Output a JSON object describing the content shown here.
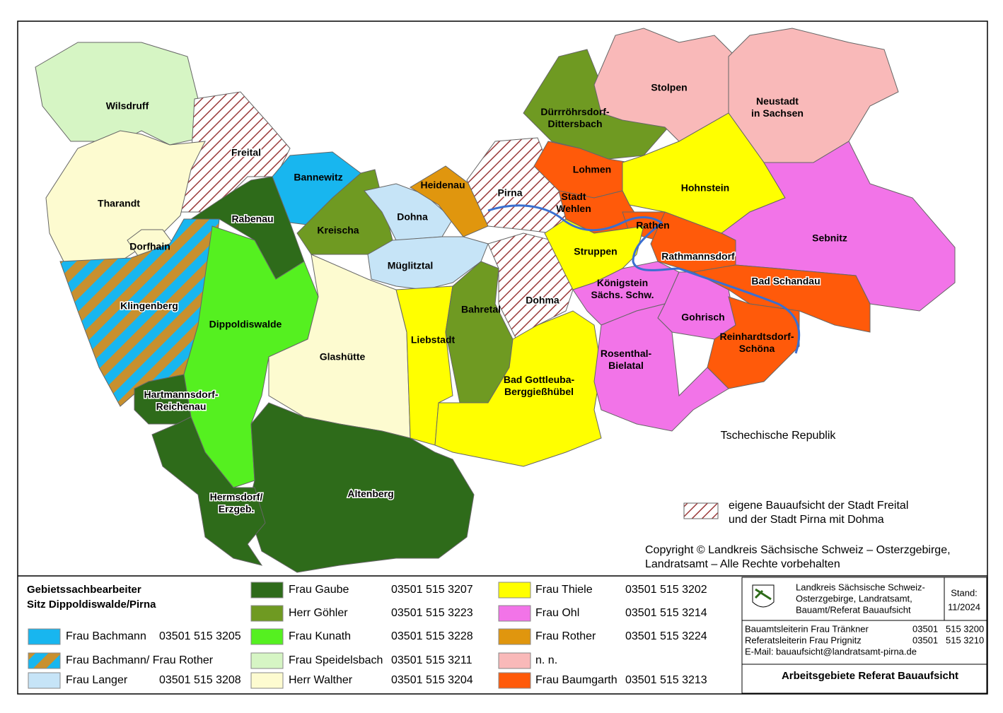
{
  "map": {
    "regions": [
      "Wilsdruff",
      "Freital",
      "Tharandt",
      "Dorfhain",
      "Klingenberg",
      "Bannewitz",
      "Rabenau",
      "Dippoldiswalde",
      "Kreischa",
      "Dohna",
      "Heidenau",
      "Müglitztal",
      "Pirna",
      "Glashütte",
      "Liebstadt",
      "Bahretal",
      "Dohma",
      [
        "Bad Gottleuba-",
        "Berggießhübel"
      ],
      "Altenberg",
      [
        "Hartmannsdorf-",
        "Reichenau"
      ],
      [
        "Hermsdorf/",
        "Erzgeb."
      ],
      [
        "Dürrröhrsdorf-",
        "Dittersbach"
      ],
      "Stolpen",
      [
        "Neustadt",
        "in Sachsen"
      ],
      "Lohmen",
      "Hohnstein",
      [
        "Stadt",
        "Wehlen"
      ],
      "Rathen",
      "Sebnitz",
      "Rathmannsdorf",
      "Struppen",
      [
        "Königstein",
        "Sächs. Schw."
      ],
      "Bad Schandau",
      "Gohrisch",
      [
        "Reinhardtsdorf-",
        "Schöna"
      ],
      [
        "Rosenthal-",
        "Bielatal"
      ]
    ],
    "country": "Tschechische Republik",
    "hatch_note": [
      "eigene Bauaufsicht der Stadt Freital",
      "und der Stadt Pirna mit Dohma"
    ],
    "copyright": [
      "Copyright © Landkreis Sächsische Schweiz – Osterzgebirge,",
      "Landratsamt – Alle Rechte vorbehalten"
    ]
  },
  "legend": {
    "title": [
      "Gebietssachbearbeiter",
      "Sitz Dippoldiswalde/Pirna"
    ],
    "entries": [
      {
        "name": "Frau Bachmann",
        "phone": "03501 515 3205"
      },
      {
        "name": "Frau Bachmann/ Frau Rother"
      },
      {
        "name": "Frau Langer",
        "phone": "03501 515 3208"
      },
      {
        "name": "Frau Gaube",
        "phone": "03501 515 3207"
      },
      {
        "name": "Herr Göhler",
        "phone": "03501 515 3223"
      },
      {
        "name": "Frau Kunath",
        "phone": "03501 515 3228"
      },
      {
        "name": "Frau Speidelsbach",
        "phone": "03501 515 3211"
      },
      {
        "name": "Herr Walther",
        "phone": "03501 515 3204"
      },
      {
        "name": "Frau Thiele",
        "phone": "03501 515 3202"
      },
      {
        "name": "Frau Ohl",
        "phone": "03501 515 3214"
      },
      {
        "name": "Frau Rother",
        "phone": "03501 515 3224"
      },
      {
        "name": "n. n."
      },
      {
        "name": "Frau Baumgarth",
        "phone": "03501 515 3213"
      }
    ]
  },
  "info": {
    "authority": [
      "Landkreis Sächsische Schweiz-",
      "Osterzgebirge, Landratsamt,",
      "Bauamt/Referat Bauaufsicht"
    ],
    "stand_label": "Stand:",
    "stand": "11/2024",
    "contacts": [
      {
        "name": "Bauamtsleiterin Frau Tränkner",
        "phone": "03501   515 3200"
      },
      {
        "name": "Referatsleiterin Frau Prignitz",
        "phone": "03501   515 3210"
      }
    ],
    "email": "E-Mail: bauaufsicht@landratsamt-pirna.de",
    "title": "Arbeitsgebiete Referat Bauaufsicht"
  }
}
